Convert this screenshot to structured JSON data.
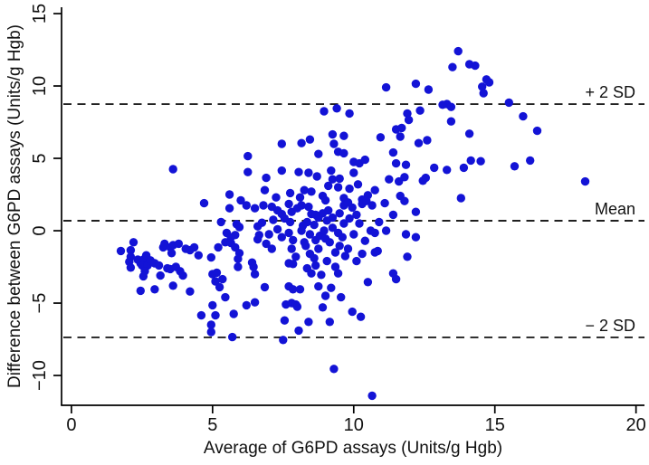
{
  "chart_data": {
    "type": "scatter",
    "title": "",
    "xlabel": "Average of G6PD assays (Units/g Hgb)",
    "ylabel": "Difference between G6PD assays (Units/g Hgb)",
    "xlim": [
      -0.35,
      20.3
    ],
    "ylim": [
      -12.06,
      15.44
    ],
    "x_ticks": [
      0,
      5,
      10,
      15,
      20
    ],
    "y_ticks": [
      -10,
      -5,
      0,
      5,
      10,
      15
    ],
    "grid": false,
    "legend": "none",
    "point_color": "#1313d6",
    "axis_color": "#000000",
    "reference_line_color": "#000000",
    "reference_lines": [
      {
        "id": "plus-2sd",
        "label": "+ 2 SD",
        "value": 8.75
      },
      {
        "id": "mean",
        "label": "Mean",
        "value": 0.69
      },
      {
        "id": "minus-2sd",
        "label": "− 2 SD",
        "value": -7.37
      }
    ],
    "points": [
      [
        13.7,
        12.4
      ],
      [
        13.5,
        11.3
      ],
      [
        14.1,
        11.5
      ],
      [
        14.3,
        11.4
      ],
      [
        14.7,
        10.45
      ],
      [
        14.8,
        10.25
      ],
      [
        14.55,
        9.95
      ],
      [
        14.6,
        9.5
      ],
      [
        12.2,
        10.15
      ],
      [
        12.65,
        9.75
      ],
      [
        11.15,
        9.9
      ],
      [
        13.3,
        8.75
      ],
      [
        13.45,
        8.55
      ],
      [
        13.15,
        8.7
      ],
      [
        15.5,
        8.85
      ],
      [
        16.0,
        7.9
      ],
      [
        13.45,
        7.55
      ],
      [
        14.1,
        6.7
      ],
      [
        16.5,
        6.9
      ],
      [
        8.95,
        8.25
      ],
      [
        9.4,
        8.45
      ],
      [
        9.85,
        8.1
      ],
      [
        11.9,
        8.1
      ],
      [
        11.95,
        7.65
      ],
      [
        12.35,
        8.3
      ],
      [
        11.5,
        7.0
      ],
      [
        11.7,
        7.1
      ],
      [
        11.65,
        6.5
      ],
      [
        10.95,
        6.45
      ],
      [
        9.25,
        6.65
      ],
      [
        9.65,
        6.55
      ],
      [
        7.45,
        6.0
      ],
      [
        8.15,
        6.05
      ],
      [
        8.45,
        6.3
      ],
      [
        9.3,
        6.0
      ],
      [
        12.3,
        6.05
      ],
      [
        12.6,
        6.25
      ],
      [
        8.75,
        5.3
      ],
      [
        9.45,
        5.45
      ],
      [
        9.65,
        5.35
      ],
      [
        10.0,
        4.75
      ],
      [
        10.2,
        4.65
      ],
      [
        10.4,
        4.9
      ],
      [
        11.4,
        5.4
      ],
      [
        11.5,
        4.65
      ],
      [
        11.85,
        4.55
      ],
      [
        12.55,
        3.65
      ],
      [
        6.9,
        3.65
      ],
      [
        7.45,
        4.15
      ],
      [
        8.05,
        4.05
      ],
      [
        8.4,
        4.0
      ],
      [
        8.7,
        3.75
      ],
      [
        9.2,
        4.15
      ],
      [
        9.25,
        3.55
      ],
      [
        9.5,
        3.6
      ],
      [
        10.0,
        4.0
      ],
      [
        11.25,
        3.55
      ],
      [
        11.6,
        3.4
      ],
      [
        11.8,
        3.7
      ],
      [
        12.45,
        3.45
      ],
      [
        12.85,
        4.35
      ],
      [
        13.3,
        4.2
      ],
      [
        13.9,
        4.35
      ],
      [
        14.15,
        4.85
      ],
      [
        14.5,
        4.8
      ],
      [
        15.7,
        4.45
      ],
      [
        16.25,
        4.85
      ],
      [
        18.2,
        3.4
      ],
      [
        13.8,
        2.25
      ],
      [
        3.6,
        4.25
      ],
      [
        6.25,
        5.15
      ],
      [
        6.25,
        4.05
      ],
      [
        5.6,
        2.5
      ],
      [
        4.7,
        1.9
      ],
      [
        5.6,
        1.55
      ],
      [
        6.0,
        2.1
      ],
      [
        6.2,
        1.75
      ],
      [
        6.5,
        1.55
      ],
      [
        6.85,
        2.8
      ],
      [
        7.25,
        2.3
      ],
      [
        7.75,
        2.6
      ],
      [
        8.25,
        2.8
      ],
      [
        8.5,
        2.7
      ],
      [
        8.9,
        2.4
      ],
      [
        9.1,
        3.1
      ],
      [
        9.45,
        3.0
      ],
      [
        9.65,
        2.25
      ],
      [
        9.85,
        2.9
      ],
      [
        10.3,
        2.15
      ],
      [
        10.5,
        2.45
      ],
      [
        10.75,
        2.8
      ],
      [
        11.65,
        2.4
      ],
      [
        11.8,
        2.05
      ],
      [
        10.15,
        3.2
      ],
      [
        6.8,
        1.75
      ],
      [
        7.1,
        1.65
      ],
      [
        7.45,
        1.15
      ],
      [
        7.7,
        1.85
      ],
      [
        7.8,
        1.3
      ],
      [
        8.0,
        1.55
      ],
      [
        8.15,
        1.75
      ],
      [
        8.4,
        1.65
      ],
      [
        8.5,
        1.15
      ],
      [
        8.65,
        1.1
      ],
      [
        8.75,
        0.9
      ],
      [
        8.9,
        1.2
      ],
      [
        9.1,
        1.4
      ],
      [
        9.25,
        0.9
      ],
      [
        9.5,
        1.2
      ],
      [
        9.65,
        1.75
      ],
      [
        9.8,
        1.95
      ],
      [
        9.95,
        1.6
      ],
      [
        10.1,
        1.1
      ],
      [
        10.3,
        1.85
      ],
      [
        10.45,
        2.05
      ],
      [
        10.65,
        1.75
      ],
      [
        11.4,
        1.1
      ],
      [
        12.2,
        1.3
      ],
      [
        9.0,
        2.1
      ],
      [
        8.1,
        2.3
      ],
      [
        7.3,
        1.4
      ],
      [
        10.9,
        0.6
      ],
      [
        11.1,
        1.9
      ],
      [
        7.75,
        0.6
      ],
      [
        8.35,
        0.6
      ],
      [
        9.05,
        0.7
      ],
      [
        9.65,
        0.5
      ],
      [
        7.0,
        -0.25
      ],
      [
        7.3,
        0.1
      ],
      [
        7.45,
        -0.45
      ],
      [
        7.7,
        -0.15
      ],
      [
        7.85,
        -0.65
      ],
      [
        8.15,
        0.0
      ],
      [
        8.45,
        -0.25
      ],
      [
        8.65,
        -0.65
      ],
      [
        8.8,
        -0.35
      ],
      [
        8.95,
        0.0
      ],
      [
        9.25,
        0.2
      ],
      [
        9.45,
        -0.15
      ],
      [
        9.6,
        -0.45
      ],
      [
        10.0,
        -0.25
      ],
      [
        10.6,
        0.0
      ],
      [
        10.75,
        -0.15
      ],
      [
        11.15,
        0.0
      ],
      [
        11.85,
        -0.25
      ],
      [
        12.2,
        -0.45
      ],
      [
        5.3,
        0.6
      ],
      [
        5.5,
        -0.15
      ],
      [
        5.85,
        0.45
      ],
      [
        5.8,
        -0.3
      ],
      [
        5.45,
        -0.8
      ],
      [
        5.95,
        0.25
      ],
      [
        6.6,
        0.3
      ],
      [
        6.6,
        -0.6
      ],
      [
        6.65,
        -0.3
      ],
      [
        8.2,
        0.35
      ],
      [
        8.6,
        0.4
      ],
      [
        9.0,
        -0.55
      ],
      [
        9.15,
        -0.8
      ],
      [
        8.25,
        -0.8
      ],
      [
        7.55,
        0.85
      ],
      [
        9.85,
        0.85
      ],
      [
        10.2,
        0.5
      ],
      [
        10.4,
        -0.7
      ],
      [
        7.15,
        0.75
      ],
      [
        6.75,
        0.55
      ],
      [
        6.9,
        -0.9
      ],
      [
        5.65,
        -0.45
      ],
      [
        5.65,
        -0.85
      ],
      [
        5.8,
        -1.15
      ],
      [
        5.95,
        -1.55
      ],
      [
        5.9,
        -1.95
      ],
      [
        2.2,
        -0.8
      ],
      [
        1.75,
        -1.4
      ],
      [
        2.1,
        -1.35
      ],
      [
        2.1,
        -1.8
      ],
      [
        2.05,
        -2.15
      ],
      [
        2.1,
        -2.55
      ],
      [
        2.35,
        -2.0
      ],
      [
        2.45,
        -2.25
      ],
      [
        2.55,
        -2.0
      ],
      [
        2.5,
        -2.4
      ],
      [
        2.65,
        -1.7
      ],
      [
        2.7,
        -2.4
      ],
      [
        2.6,
        -2.8
      ],
      [
        2.55,
        -3.15
      ],
      [
        2.8,
        -2.05
      ],
      [
        2.95,
        -2.25
      ],
      [
        3.1,
        -2.4
      ],
      [
        3.15,
        -3.1
      ],
      [
        3.25,
        -1.15
      ],
      [
        3.3,
        -0.9
      ],
      [
        3.5,
        -1.15
      ],
      [
        3.55,
        -1.55
      ],
      [
        3.6,
        -1.0
      ],
      [
        3.8,
        -0.9
      ],
      [
        3.4,
        -2.6
      ],
      [
        3.5,
        -2.65
      ],
      [
        3.7,
        -2.5
      ],
      [
        3.85,
        -2.8
      ],
      [
        3.95,
        -3.1
      ],
      [
        4.05,
        -1.25
      ],
      [
        4.2,
        -1.35
      ],
      [
        4.35,
        -1.15
      ],
      [
        4.5,
        -1.7
      ],
      [
        4.95,
        -1.85
      ],
      [
        5.0,
        -3.0
      ],
      [
        5.2,
        -1.15
      ],
      [
        5.1,
        -3.5
      ],
      [
        3.6,
        -3.8
      ],
      [
        6.4,
        -2.2
      ],
      [
        7.1,
        -1.25
      ],
      [
        7.8,
        -1.25
      ],
      [
        7.95,
        -1.8
      ],
      [
        8.3,
        -1.05
      ],
      [
        8.45,
        -1.6
      ],
      [
        8.6,
        -1.9
      ],
      [
        8.75,
        -1.25
      ],
      [
        9.05,
        -2.1
      ],
      [
        9.35,
        -1.5
      ],
      [
        9.5,
        -1.05
      ],
      [
        9.8,
        -1.25
      ],
      [
        10.1,
        -2.1
      ],
      [
        10.3,
        -1.6
      ],
      [
        10.75,
        -1.5
      ],
      [
        10.85,
        -1.4
      ],
      [
        11.9,
        -1.8
      ],
      [
        7.7,
        -2.25
      ],
      [
        7.85,
        -2.3
      ],
      [
        8.35,
        -2.6
      ],
      [
        8.5,
        -2.95
      ],
      [
        8.65,
        -2.4
      ],
      [
        8.85,
        -3.05
      ],
      [
        9.35,
        -2.5
      ],
      [
        9.45,
        -2.95
      ],
      [
        10.5,
        -3.55
      ],
      [
        11.4,
        -2.95
      ],
      [
        11.5,
        -3.35
      ],
      [
        9.7,
        -1.75
      ],
      [
        6.45,
        -2.5
      ],
      [
        6.5,
        -3.0
      ],
      [
        5.9,
        -2.5
      ],
      [
        5.35,
        -3.35
      ],
      [
        5.15,
        -2.9
      ],
      [
        2.45,
        -4.15
      ],
      [
        2.95,
        -4.05
      ],
      [
        4.2,
        -4.2
      ],
      [
        5.25,
        -3.9
      ],
      [
        5.45,
        -4.6
      ],
      [
        5.0,
        -5.15
      ],
      [
        4.6,
        -5.85
      ],
      [
        5.1,
        -5.85
      ],
      [
        4.95,
        -6.5
      ],
      [
        4.95,
        -7.0
      ],
      [
        5.7,
        -7.35
      ],
      [
        5.75,
        -5.75
      ],
      [
        6.2,
        -5.15
      ],
      [
        6.5,
        -4.95
      ],
      [
        6.85,
        -3.9
      ],
      [
        7.7,
        -3.85
      ],
      [
        7.85,
        -4.05
      ],
      [
        8.1,
        -4.05
      ],
      [
        8.75,
        -3.85
      ],
      [
        9.2,
        -3.95
      ],
      [
        9.0,
        -4.5
      ],
      [
        9.55,
        -4.6
      ],
      [
        7.6,
        -5.1
      ],
      [
        7.8,
        -5.0
      ],
      [
        7.95,
        -5.1
      ],
      [
        8.0,
        -5.25
      ],
      [
        8.9,
        -5.3
      ],
      [
        9.95,
        -5.6
      ],
      [
        10.25,
        -5.95
      ],
      [
        7.55,
        -6.2
      ],
      [
        8.4,
        -6.3
      ],
      [
        9.15,
        -6.3
      ],
      [
        8.05,
        -6.9
      ],
      [
        7.5,
        -7.55
      ],
      [
        9.3,
        -9.55
      ],
      [
        10.65,
        -11.4
      ]
    ]
  }
}
